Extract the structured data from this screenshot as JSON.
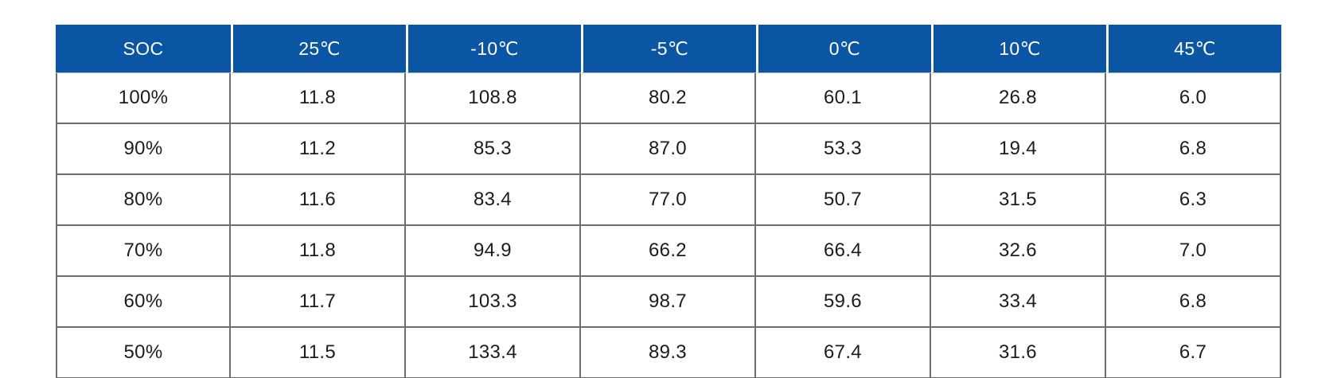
{
  "table": {
    "header": [
      "SOC",
      "25℃",
      "-10℃",
      "-5℃",
      "0℃",
      "10℃",
      "45℃"
    ],
    "rows": [
      [
        "100%",
        "11.8",
        "108.8",
        "80.2",
        "60.1",
        "26.8",
        "6.0"
      ],
      [
        "90%",
        "11.2",
        "85.3",
        "87.0",
        "53.3",
        "19.4",
        "6.8"
      ],
      [
        "80%",
        "11.6",
        "83.4",
        "77.0",
        "50.7",
        "31.5",
        "6.3"
      ],
      [
        "70%",
        "11.8",
        "94.9",
        "66.2",
        "66.4",
        "32.6",
        "7.0"
      ],
      [
        "60%",
        "11.7",
        "103.3",
        "98.7",
        "59.6",
        "33.4",
        "6.8"
      ],
      [
        "50%",
        "11.5",
        "133.4",
        "89.3",
        "67.4",
        "31.6",
        "6.7"
      ]
    ]
  },
  "chart_data": {
    "type": "table",
    "columns": [
      "SOC",
      "25℃",
      "-10℃",
      "-5℃",
      "0℃",
      "10℃",
      "45℃"
    ],
    "rows": [
      [
        "100%",
        11.8,
        108.8,
        80.2,
        60.1,
        26.8,
        6.0
      ],
      [
        "90%",
        11.2,
        85.3,
        87.0,
        53.3,
        19.4,
        6.8
      ],
      [
        "80%",
        11.6,
        83.4,
        77.0,
        50.7,
        31.5,
        6.3
      ],
      [
        "70%",
        11.8,
        94.9,
        66.2,
        66.4,
        32.6,
        7.0
      ],
      [
        "60%",
        11.7,
        103.3,
        98.7,
        59.6,
        33.4,
        6.8
      ],
      [
        "50%",
        11.5,
        133.4,
        89.3,
        67.4,
        31.6,
        6.7
      ]
    ],
    "title": "",
    "layout_hints": {
      "header_position": "top",
      "row_label_column": "SOC",
      "grid": "on"
    }
  },
  "colors": {
    "header_background": "#0b55a5",
    "header_text": "#ffffff",
    "grid_border": "#6d6d6d",
    "body_text": "#1c1c1c",
    "page_background": "#ffffff"
  }
}
